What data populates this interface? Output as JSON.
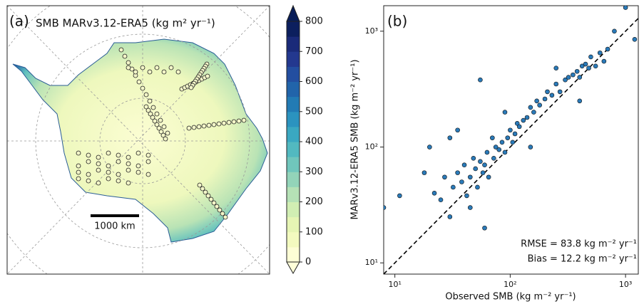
{
  "chart_data": [
    {
      "type": "map",
      "panel_label": "(a)",
      "title": "SMB MARv3.12-ERA5 (kg m² yr⁻¹)",
      "scale_bar_label": "1000 km",
      "colorbar": {
        "lim": [
          0,
          800
        ],
        "ticks": [
          0,
          100,
          200,
          300,
          400,
          500,
          600,
          700,
          800
        ],
        "extend": "both",
        "colors": [
          "#fdfed5",
          "#f3fabf",
          "#e6f5b4",
          "#d1eeb3",
          "#b5e1b6",
          "#93d4b9",
          "#70c6bc",
          "#52b9c0",
          "#3aa8c1",
          "#2b93bf",
          "#227bb4",
          "#2164aa",
          "#234ea0",
          "#23388f",
          "#1a2a79",
          "#0c1f5e"
        ]
      }
    },
    {
      "type": "scatter",
      "panel_label": "(b)",
      "x_label": "Observed SMB (kg m⁻² yr⁻¹)",
      "y_label": "MARv3.12-ERA5 SMB (kg m⁻² yr⁻¹)",
      "x": [
        8,
        11,
        18,
        20,
        22,
        25,
        27,
        30,
        32,
        35,
        38,
        40,
        42,
        45,
        48,
        50,
        52,
        55,
        58,
        60,
        63,
        65,
        70,
        72,
        75,
        80,
        85,
        90,
        95,
        100,
        105,
        110,
        115,
        120,
        130,
        140,
        150,
        160,
        170,
        180,
        200,
        210,
        230,
        250,
        270,
        300,
        320,
        350,
        380,
        400,
        420,
        450,
        480,
        500,
        550,
        600,
        650,
        700,
        800,
        1000,
        1200,
        55,
        30,
        45,
        150,
        60,
        250,
        400,
        35,
        90
      ],
      "y": [
        30,
        38,
        60,
        100,
        40,
        35,
        55,
        25,
        45,
        60,
        50,
        70,
        38,
        55,
        80,
        65,
        45,
        75,
        60,
        70,
        90,
        55,
        120,
        80,
        100,
        95,
        110,
        90,
        120,
        140,
        110,
        130,
        160,
        150,
        170,
        180,
        220,
        200,
        250,
        230,
        260,
        300,
        280,
        350,
        300,
        380,
        400,
        420,
        450,
        400,
        500,
        520,
        480,
        600,
        500,
        650,
        550,
        700,
        1000,
        1600,
        850,
        380,
        120,
        30,
        100,
        20,
        480,
        250,
        140,
        200
      ],
      "color": "#2a7ab9",
      "log_x": true,
      "log_y": true,
      "identity_line": true,
      "xlim": [
        8,
        1290
      ],
      "ylim": [
        8,
        1660
      ],
      "xticks": [
        {
          "value": 10,
          "label": "10¹"
        },
        {
          "value": 100,
          "label": "10²"
        },
        {
          "value": 1000,
          "label": "10³"
        }
      ],
      "yticks": [
        {
          "value": 10,
          "label": "10¹"
        },
        {
          "value": 100,
          "label": "10²"
        },
        {
          "value": 1000,
          "label": "10³"
        }
      ],
      "annotations": [
        "RMSE = 83.8 kg m⁻² yr⁻¹",
        "Bias = 12.2 kg m⁻² yr⁻¹"
      ]
    }
  ]
}
